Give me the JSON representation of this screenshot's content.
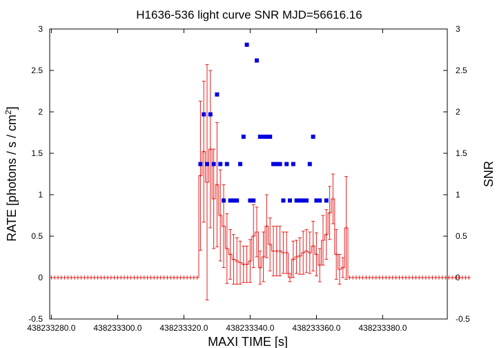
{
  "chart_data": {
    "type": "scatter",
    "title": "H1636-536 light curve  SNR MJD=56616.16",
    "xlabel": "MAXI TIME [s]",
    "ylabel": "RATE [photons / s / cm",
    "ylabel_sup": "2",
    "ylabel_suffix": "]",
    "y2label": "SNR",
    "xlim": [
      438233279.5,
      438233399.5
    ],
    "ylim": [
      -0.5,
      3
    ],
    "y2lim": [
      -0.5,
      3
    ],
    "x_ticks": [
      "438233280.0",
      "438233300.0",
      "438233320.0",
      "438233340.0",
      "438233360.0",
      "438233380.0"
    ],
    "x_tick_values": [
      438233280,
      438233300,
      438233320,
      438233340,
      438233360,
      438233380
    ],
    "y_ticks": [
      "-0.5",
      "0",
      "0.5",
      "1",
      "1.5",
      "2",
      "2.5",
      "3"
    ],
    "y_tick_values": [
      -0.5,
      0,
      0.5,
      1,
      1.5,
      2,
      2.5,
      3
    ],
    "y2_ticks": [
      "-0.5",
      "0",
      "0.5",
      "1",
      "1.5",
      "2",
      "2.5",
      "3"
    ],
    "y2_tick_values": [
      -0.5,
      0,
      0.5,
      1,
      1.5,
      2,
      2.5,
      3
    ],
    "grid": false,
    "colors": {
      "rate": "#e02020",
      "snr": "#0000e0"
    },
    "series": [
      {
        "style": "red error bars",
        "x_start": 438233280,
        "x_step": 1,
        "values": [
          0,
          0,
          0,
          0,
          0,
          0,
          0,
          0,
          0,
          0,
          0,
          0,
          0,
          0,
          0,
          0,
          0,
          0,
          0,
          0,
          0,
          0,
          0,
          0,
          0,
          0,
          0,
          0,
          0,
          0,
          0,
          0,
          0,
          0,
          0,
          0,
          0,
          0,
          0,
          0,
          0,
          0,
          0,
          0,
          0,
          1.23,
          1.52,
          1.15,
          1.55,
          0.95,
          1.12,
          0.75,
          0.62,
          0.35,
          0.28,
          0.22,
          0.2,
          0.18,
          0.16,
          0.16,
          0.2,
          0.5,
          0.55,
          0.12,
          0.25,
          0.62,
          0.4,
          0.32,
          0.32,
          0.32,
          0.3,
          0.3,
          0,
          0.22,
          0.25,
          0.26,
          0.3,
          0.32,
          0.3,
          0.38,
          0.28,
          0.15,
          0.45,
          0.52,
          0.78,
          0.95,
          0.28,
          0.1,
          0.12,
          0.6,
          0,
          0,
          0,
          0,
          0,
          0,
          0,
          0,
          0,
          0,
          0,
          0,
          0,
          0,
          0,
          0,
          0,
          0,
          0,
          0,
          0,
          0,
          0,
          0,
          0,
          0,
          0,
          0,
          0,
          0,
          0,
          0,
          0,
          0,
          0,
          0,
          0
        ],
        "errors": [
          0,
          0,
          0,
          0,
          0,
          0,
          0,
          0,
          0,
          0,
          0,
          0,
          0,
          0,
          0,
          0,
          0,
          0,
          0,
          0,
          0,
          0,
          0,
          0,
          0,
          0,
          0,
          0,
          0,
          0,
          0,
          0,
          0,
          0,
          0,
          0,
          0,
          0,
          0,
          0,
          0,
          0,
          0,
          0,
          0,
          0.9,
          0.85,
          1.42,
          0.95,
          0.6,
          0.75,
          0.55,
          0.5,
          0.42,
          0.3,
          0.3,
          0.28,
          0.26,
          0.22,
          0.22,
          0.26,
          0.38,
          0.3,
          0.2,
          0.3,
          0.38,
          0.32,
          0.3,
          0.3,
          0.3,
          0.25,
          0.25,
          0.05,
          0.22,
          0.2,
          0.22,
          0.26,
          0.26,
          0.25,
          0.3,
          0.26,
          0.2,
          0.3,
          0.3,
          0.32,
          0.3,
          0.3,
          0.18,
          0.12,
          0.62,
          0,
          0,
          0,
          0,
          0,
          0,
          0,
          0,
          0,
          0,
          0,
          0,
          0,
          0,
          0,
          0,
          0,
          0,
          0,
          0,
          0,
          0,
          0,
          0,
          0,
          0,
          0,
          0,
          0,
          0,
          0,
          0,
          0,
          0,
          0,
          0,
          0
        ]
      },
      {
        "style": "blue squares",
        "x": [
          438233325,
          438233326,
          438233327,
          438233328,
          438233329,
          438233330,
          438233331,
          438233332,
          438233333,
          438233334,
          438233335,
          438233336,
          438233337,
          438233338,
          438233339,
          438233340,
          438233341,
          438233342,
          438233343,
          438233344,
          438233345,
          438233346,
          438233347,
          438233348,
          438233349,
          438233350,
          438233351,
          438233352,
          438233353,
          438233354,
          438233355,
          438233356,
          438233357,
          438233358,
          438233359,
          438233360,
          438233361,
          438233363
        ],
        "y": [
          1.37,
          1.97,
          1.37,
          1.97,
          1.37,
          2.21,
          1.37,
          0.93,
          1.37,
          0.93,
          0.93,
          0.93,
          1.37,
          1.7,
          2.81,
          0.93,
          0.93,
          2.62,
          1.7,
          1.7,
          1.7,
          1.7,
          1.37,
          1.37,
          1.37,
          0.93,
          1.37,
          0.93,
          1.37,
          0.93,
          0.93,
          0.93,
          0.93,
          1.37,
          1.7,
          0.93,
          0.93,
          0.93
        ]
      }
    ]
  }
}
